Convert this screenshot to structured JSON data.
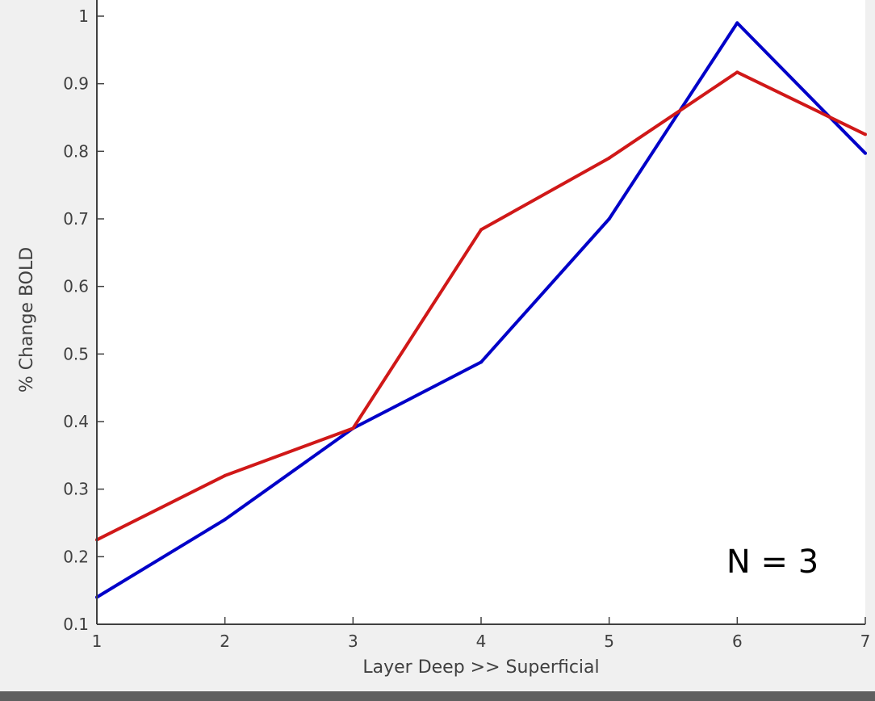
{
  "chart_data": {
    "type": "line",
    "x": [
      1,
      2,
      3,
      4,
      5,
      6,
      7
    ],
    "series": [
      {
        "color": "#0000c8",
        "values": [
          0.14,
          0.255,
          0.39,
          0.488,
          0.7,
          0.99,
          0.797
        ]
      },
      {
        "color": "#d01818",
        "values": [
          0.225,
          0.32,
          0.39,
          0.684,
          0.79,
          0.917,
          0.825
        ]
      }
    ],
    "title": "",
    "xlabel": "Layer Deep >> Superficial",
    "ylabel": "% Change BOLD",
    "xlim": [
      1,
      7
    ],
    "ylim": [
      0.1,
      1
    ],
    "xticks": [
      1,
      2,
      3,
      4,
      5,
      6,
      7
    ],
    "yticks": [
      0.1,
      0.2,
      0.3,
      0.4,
      0.5,
      0.6,
      0.7,
      0.8,
      0.9,
      1
    ],
    "grid": false,
    "annotation": "N = 3"
  },
  "colors": {
    "axes_background": "#ffffff",
    "figure_background": "#f0f0f0",
    "axis_color": "#404040"
  }
}
